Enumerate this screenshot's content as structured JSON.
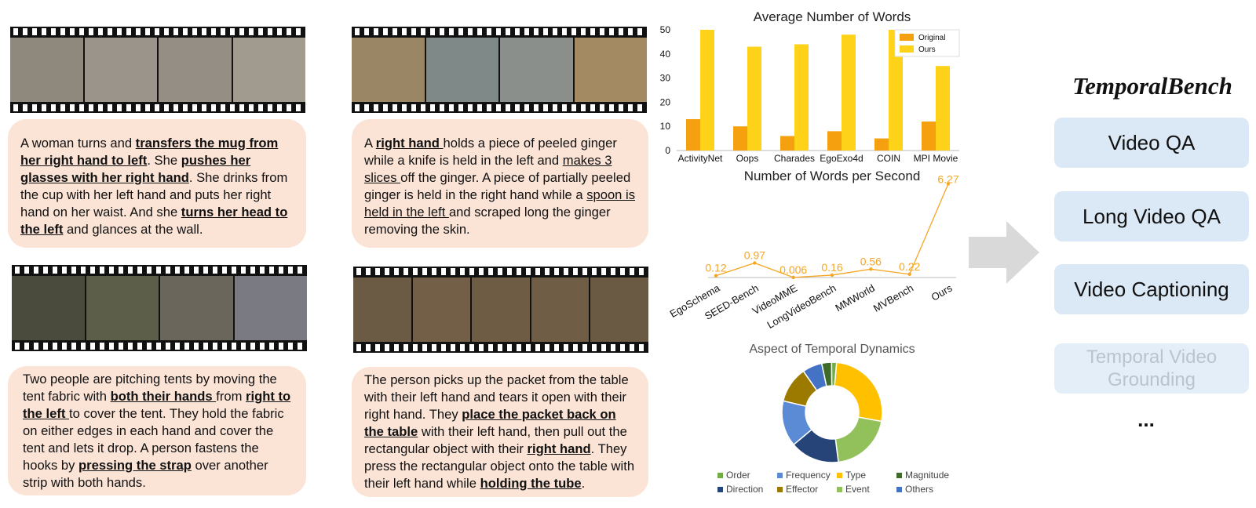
{
  "examples": [
    {
      "id": "top-left",
      "frame_colors": [
        "#8f887c",
        "#9a948a",
        "#948e84",
        "#a09a8f"
      ],
      "text": [
        {
          "t": "A woman turns and "
        },
        {
          "t": "transfers the mug from her right hand to left",
          "b": true,
          "u": true
        },
        {
          "t": ". She "
        },
        {
          "t": "pushes her glasses with her right hand",
          "b": true,
          "u": true
        },
        {
          "t": ". She drinks from the cup with her left hand and puts her right hand on her waist. And she "
        },
        {
          "t": "turns her head to the left",
          "b": true,
          "u": true
        },
        {
          "t": " and glances at the wall."
        }
      ]
    },
    {
      "id": "top-right",
      "frame_colors": [
        "#9a8664",
        "#7f8a88",
        "#8a8f8c",
        "#a48a62"
      ],
      "text": [
        {
          "t": "A "
        },
        {
          "t": "right hand ",
          "b": true,
          "u": true
        },
        {
          "t": "holds a piece of peeled ginger while a knife is held in the left and "
        },
        {
          "t": "makes 3 slices ",
          "u": true
        },
        {
          "t": "off the ginger. A piece of partially peeled ginger is held in the right hand while a "
        },
        {
          "t": "spoon is held in the left ",
          "u": true
        },
        {
          "t": "and scraped long the ginger removing the skin."
        }
      ]
    },
    {
      "id": "bottom-left",
      "frame_colors": [
        "#4a4b3c",
        "#5d5e4a",
        "#6b665c",
        "#7a7a82"
      ],
      "text": [
        {
          "t": "Two people are pitching tents by moving the tent fabric with "
        },
        {
          "t": "both their hands ",
          "b": true,
          "u": true
        },
        {
          "t": "from "
        },
        {
          "t": "right to the left ",
          "b": true,
          "u": true
        },
        {
          "t": "to cover the tent. They hold the fabric on either edges in each hand and cover the tent and lets it drop. A person fastens the hooks by "
        },
        {
          "t": "pressing the strap",
          "b": true,
          "u": true
        },
        {
          "t": " over another strip with both hands."
        }
      ]
    },
    {
      "id": "bottom-right",
      "frame_colors": [
        "#6b5a44",
        "#735f47",
        "#6e5c45",
        "#705d46",
        "#6a5943"
      ],
      "text": [
        {
          "t": "The person picks up the packet from the table with their left hand and tears it open with their right hand. They "
        },
        {
          "t": "place the packet back on the table",
          "b": true,
          "u": true
        },
        {
          "t": " with their left hand, then pull out the rectangular object with their "
        },
        {
          "t": "right hand",
          "b": true,
          "u": true
        },
        {
          "t": ". They press the rectangular object onto the table with their left hand while "
        },
        {
          "t": "holding the tube",
          "b": true,
          "u": true
        },
        {
          "t": "."
        }
      ]
    }
  ],
  "chart_data": [
    {
      "type": "bar",
      "title": "Average Number of Words",
      "categories": [
        "ActivityNet",
        "Oops",
        "Charades",
        "EgoExo4d",
        "COIN",
        "MPI Movie"
      ],
      "series": [
        {
          "name": "Original",
          "values": [
            13,
            10,
            6,
            8,
            5,
            12
          ],
          "color": "#f5a00f"
        },
        {
          "name": "Ours",
          "values": [
            50,
            43,
            44,
            48,
            50,
            35
          ],
          "color": "#ffd21a"
        }
      ],
      "ylim": [
        0,
        50
      ],
      "yticks": [
        0,
        10,
        20,
        30,
        40,
        50
      ],
      "legend": "top-right"
    },
    {
      "type": "line",
      "title": "Number of Words per Second",
      "categories": [
        "EgoSchema",
        "SEED-Bench",
        "VideoMME",
        "LongVideoBench",
        "MMWorld",
        "MVBench",
        "Ours"
      ],
      "values": [
        0.12,
        0.97,
        0.006,
        0.16,
        0.56,
        0.22,
        6.27
      ],
      "labels": [
        "0.12",
        "0.97",
        "0.006",
        "0.16",
        "0.56",
        "0.22",
        "6.27"
      ],
      "color": "#f5a623"
    },
    {
      "type": "pie",
      "title": "Aspect of Temporal Dynamics",
      "donut": true,
      "slices": [
        {
          "label": "Type",
          "value": 25,
          "color": "#ffc000"
        },
        {
          "label": "Event",
          "value": 19,
          "color": "#92c05a"
        },
        {
          "label": "Direction",
          "value": 15,
          "color": "#264478"
        },
        {
          "label": "Frequency",
          "value": 14,
          "color": "#5b8bd4"
        },
        {
          "label": "Effector",
          "value": 11,
          "color": "#9c7a00"
        },
        {
          "label": "Others",
          "value": 6,
          "color": "#4472c4"
        },
        {
          "label": "Magnitude",
          "value": 3,
          "color": "#3e6b2a"
        },
        {
          "label": "Order",
          "value": 1.5,
          "color": "#70ad47"
        }
      ],
      "legend": [
        [
          "Order",
          "Frequency",
          "Type",
          "Magnitude"
        ],
        [
          "Direction",
          "Effector",
          "Event",
          "Others"
        ]
      ]
    }
  ],
  "benchmark": {
    "title": "TemporalBench",
    "tasks": [
      "Video QA",
      "Long Video QA",
      "Video Captioning",
      "Temporal Video Grounding"
    ],
    "ellipsis": "..."
  }
}
